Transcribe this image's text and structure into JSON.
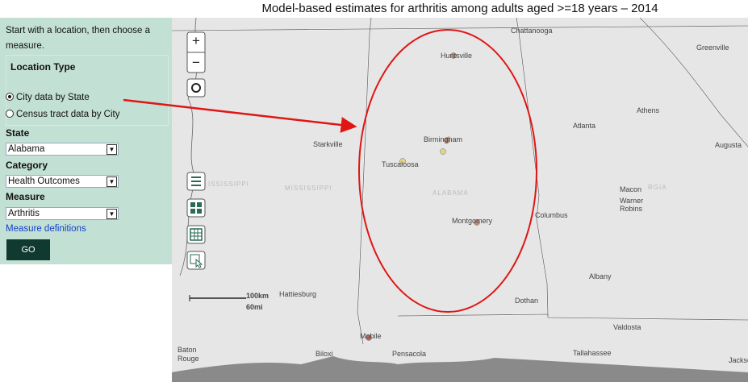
{
  "header": {
    "title": "Model-based estimates for arthritis among adults aged >=18 years – 2014"
  },
  "sidebar": {
    "intro": [
      "Start with a location, then choose a",
      "measure."
    ],
    "location_type": {
      "label": "Location Type",
      "options": [
        "City data by State",
        "Census tract data by City"
      ]
    },
    "state": {
      "label": "State",
      "value": "Alabama"
    },
    "category": {
      "label": "Category",
      "value": "Health Outcomes"
    },
    "measure": {
      "label": "Measure",
      "value": "Arthritis"
    },
    "definitions_link": "Measure definitions",
    "go_button": "GO"
  },
  "map": {
    "zoom": [
      "+",
      "−"
    ],
    "scale": [
      "100km",
      "60mi"
    ],
    "places": [
      "Chattanooga",
      "Huntsville",
      "Greenville",
      "Athens",
      "Atlanta",
      "Starkville",
      "Birmingham",
      "Augusta",
      "Tuscaloosa",
      "Macon",
      "Warner",
      "Robins",
      "Montgomery",
      "Columbus",
      "Albany",
      "Hattiesburg",
      "Dothan",
      "Valdosta",
      "Mobile",
      "Baton",
      "Rouge",
      "Biloxi",
      "Pensacola",
      "Tallahassee",
      "Jackso"
    ],
    "regions": [
      "ISSISSIPPI",
      "MISSISSIPPI",
      "ALABAMA",
      "RGIA"
    ]
  }
}
